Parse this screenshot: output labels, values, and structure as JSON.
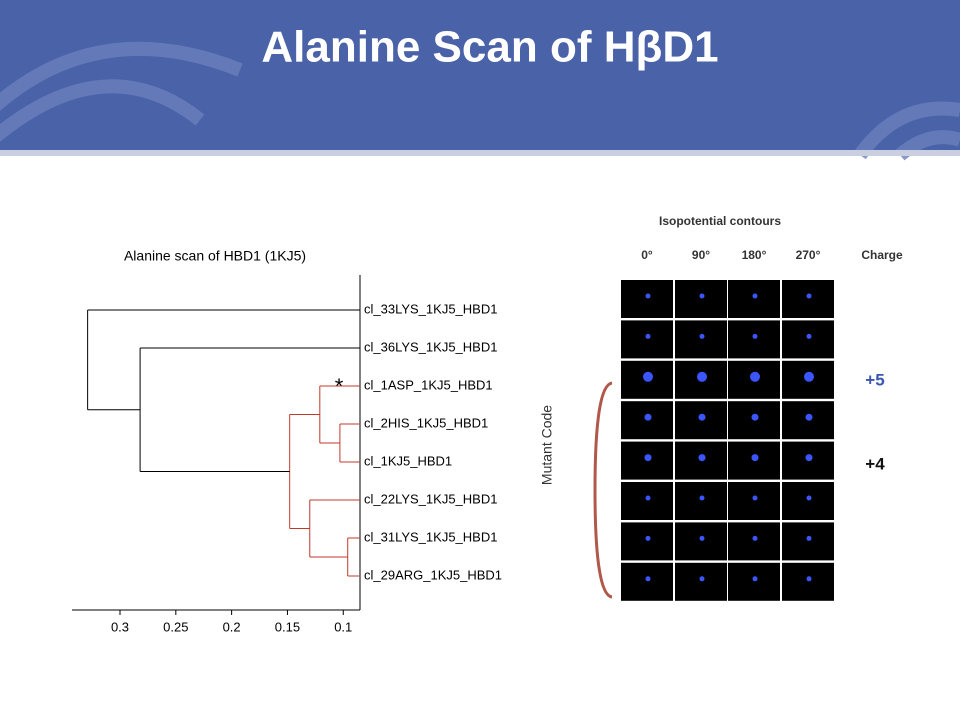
{
  "header": {
    "title": "Alanine Scan of HβD1"
  },
  "chart_data": {
    "type": "dendrogram",
    "title": "Alanine scan of HBD1 (1KJ5)",
    "y_label": "Mutant Code",
    "annotation": "*",
    "xlim": [
      0.343,
      0.085
    ],
    "xticks": [
      0.3,
      0.25,
      0.2,
      0.15,
      0.1
    ],
    "tree": {
      "height": 0.329,
      "color": "#000000",
      "children": [
        "cl_33LYS_1KJ5_HBD1",
        {
          "height": 0.282,
          "children": [
            "cl_36LYS_1KJ5_HBD1",
            {
              "height": 0.148,
              "color": "#c0392b",
              "children": [
                {
                  "height": 0.121,
                  "children": [
                    "cl_1ASP_1KJ5_HBD1",
                    {
                      "height": 0.103,
                      "children": [
                        "cl_2HIS_1KJ5_HBD1",
                        "cl_1KJ5_HBD1"
                      ]
                    }
                  ]
                },
                {
                  "height": 0.13,
                  "children": [
                    "cl_22LYS_1KJ5_HBD1",
                    {
                      "height": 0.096,
                      "children": [
                        "cl_31LYS_1KJ5_HBD1",
                        "cl_29ARG_1KJ5_HBD1"
                      ]
                    }
                  ]
                }
              ]
            }
          ]
        }
      ]
    }
  },
  "contours": {
    "title": "Isopotential contours",
    "columns": [
      "0°",
      "90°",
      "180°",
      "270°"
    ],
    "charge_header": "Charge",
    "charge_labels": [
      "+5",
      "+4"
    ]
  }
}
